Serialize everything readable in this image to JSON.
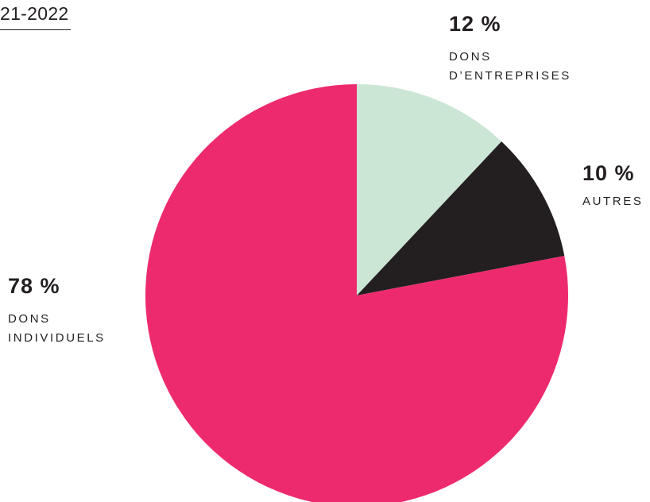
{
  "header": {
    "period_label": "21-2022"
  },
  "chart_data": {
    "type": "pie",
    "start": "12 o'clock",
    "direction": "clockwise",
    "slices": [
      {
        "value": 12,
        "percent_label": "12 %",
        "label_lines": [
          "DONS",
          "D’ENTREPRISES"
        ],
        "color": "#cce6d6"
      },
      {
        "value": 10,
        "percent_label": "10 %",
        "label_lines": [
          "AUTRES"
        ],
        "color": "#231f20"
      },
      {
        "value": 78,
        "percent_label": "78 %",
        "label_lines": [
          "DONS",
          "INDIVIDUELS"
        ],
        "color": "#ee2a6e"
      }
    ]
  }
}
